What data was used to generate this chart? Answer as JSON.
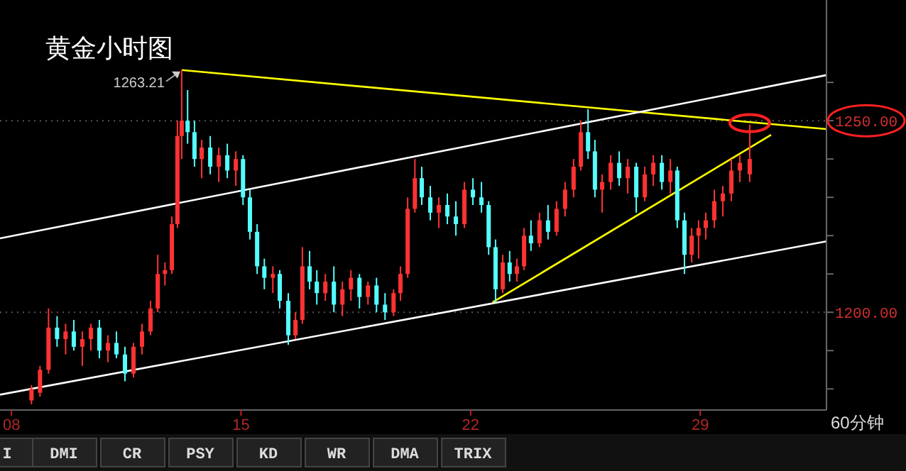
{
  "chart_data": {
    "type": "candlestick",
    "title": "黄金小时图",
    "x": [
      8.61,
      8.87,
      9.13,
      9.39,
      9.65,
      9.9,
      10.16,
      10.42,
      10.68,
      10.94,
      11.2,
      11.46,
      11.72,
      11.98,
      12.24,
      12.46,
      12.68,
      12.89,
      13.06,
      13.19,
      13.37,
      13.58,
      13.8,
      14.06,
      14.32,
      14.58,
      14.84,
      15.06,
      15.27,
      15.49,
      15.71,
      15.97,
      16.18,
      16.44,
      16.66,
      16.87,
      17.09,
      17.31,
      17.57,
      17.83,
      18.09,
      18.35,
      18.61,
      18.87,
      19.13,
      19.39,
      19.65,
      19.86,
      20.08,
      20.3,
      20.51,
      20.77,
      21.03,
      21.29,
      21.55,
      21.81,
      22.07,
      22.33,
      22.55,
      22.76,
      22.98,
      23.19,
      23.41,
      23.63,
      23.84,
      24.1,
      24.36,
      24.62,
      24.88,
      25.14,
      25.36,
      25.58,
      25.79,
      26.01,
      26.27,
      26.53,
      26.79,
      27.05,
      27.31,
      27.57,
      27.83,
      28.09,
      28.3,
      28.52,
      28.74,
      28.95,
      29.17,
      29.43,
      29.69,
      29.95,
      30.21,
      30.51
    ],
    "ohlc": [
      [
        1177,
        1181,
        1176,
        1180
      ],
      [
        1179,
        1186,
        1178,
        1185
      ],
      [
        1185,
        1201,
        1184,
        1196
      ],
      [
        1196,
        1199,
        1191,
        1193
      ],
      [
        1193,
        1197,
        1189,
        1195
      ],
      [
        1195,
        1198,
        1190,
        1191
      ],
      [
        1191,
        1195,
        1186,
        1193
      ],
      [
        1193,
        1197,
        1190,
        1196
      ],
      [
        1196,
        1198,
        1188,
        1190
      ],
      [
        1190,
        1194,
        1187,
        1192
      ],
      [
        1192,
        1195,
        1188,
        1189
      ],
      [
        1189,
        1191,
        1182,
        1184
      ],
      [
        1184,
        1192,
        1183,
        1191
      ],
      [
        1191,
        1197,
        1189,
        1195
      ],
      [
        1195,
        1203,
        1194,
        1201
      ],
      [
        1201,
        1215,
        1200,
        1210
      ],
      [
        1210,
        1213,
        1207,
        1211
      ],
      [
        1211,
        1225,
        1210,
        1223
      ],
      [
        1223,
        1250,
        1222,
        1246
      ],
      [
        1246,
        1263.21,
        1240,
        1250
      ],
      [
        1250,
        1258,
        1244,
        1247
      ],
      [
        1247,
        1250,
        1238,
        1240
      ],
      [
        1240,
        1245,
        1235,
        1243
      ],
      [
        1243,
        1246,
        1236,
        1238
      ],
      [
        1238,
        1243,
        1234,
        1241
      ],
      [
        1241,
        1244,
        1235,
        1237
      ],
      [
        1237,
        1242,
        1233,
        1240
      ],
      [
        1240,
        1241,
        1228,
        1230
      ],
      [
        1230,
        1232,
        1219,
        1221
      ],
      [
        1221,
        1223,
        1210,
        1212
      ],
      [
        1212,
        1214,
        1206,
        1209
      ],
      [
        1209,
        1212,
        1205,
        1210
      ],
      [
        1210,
        1211,
        1201,
        1203
      ],
      [
        1203,
        1205,
        1191.5,
        1194
      ],
      [
        1194,
        1200,
        1193,
        1198
      ],
      [
        1198,
        1217,
        1197,
        1212
      ],
      [
        1212,
        1216,
        1206,
        1208
      ],
      [
        1208,
        1211,
        1202,
        1205
      ],
      [
        1205,
        1210,
        1203,
        1208
      ],
      [
        1208,
        1212,
        1200,
        1202
      ],
      [
        1202,
        1208,
        1199,
        1206
      ],
      [
        1206,
        1211,
        1203,
        1209
      ],
      [
        1209,
        1210,
        1201,
        1204
      ],
      [
        1204,
        1208,
        1202,
        1207
      ],
      [
        1207,
        1209,
        1200,
        1202
      ],
      [
        1202,
        1205,
        1198,
        1200
      ],
      [
        1200,
        1206,
        1199,
        1205
      ],
      [
        1205,
        1212,
        1203,
        1210
      ],
      [
        1210,
        1230,
        1209,
        1227
      ],
      [
        1227,
        1240,
        1226,
        1235
      ],
      [
        1235,
        1238,
        1228,
        1230
      ],
      [
        1230,
        1233,
        1224,
        1226
      ],
      [
        1226,
        1230,
        1222,
        1228
      ],
      [
        1228,
        1231,
        1223,
        1225
      ],
      [
        1225,
        1229,
        1220,
        1223
      ],
      [
        1223,
        1234,
        1222,
        1232
      ],
      [
        1232,
        1235,
        1228,
        1230
      ],
      [
        1230,
        1234,
        1226,
        1228
      ],
      [
        1228,
        1229,
        1215,
        1217
      ],
      [
        1217,
        1219,
        1202.6,
        1206
      ],
      [
        1206,
        1215,
        1205,
        1213
      ],
      [
        1213,
        1216,
        1208,
        1210
      ],
      [
        1210,
        1214,
        1208,
        1212
      ],
      [
        1212,
        1222,
        1211,
        1220
      ],
      [
        1220,
        1224,
        1216,
        1218
      ],
      [
        1218,
        1226,
        1217,
        1224
      ],
      [
        1224,
        1228,
        1219,
        1221
      ],
      [
        1221,
        1229,
        1220,
        1227
      ],
      [
        1227,
        1234,
        1225,
        1232
      ],
      [
        1232,
        1240,
        1230,
        1238
      ],
      [
        1238,
        1250,
        1237,
        1247
      ],
      [
        1247,
        1253,
        1240,
        1242
      ],
      [
        1242,
        1245,
        1230,
        1232
      ],
      [
        1232,
        1236,
        1226,
        1234
      ],
      [
        1234,
        1241,
        1232,
        1239
      ],
      [
        1239,
        1242,
        1233,
        1235
      ],
      [
        1235,
        1240,
        1231,
        1238
      ],
      [
        1238,
        1239,
        1226,
        1230
      ],
      [
        1230,
        1238,
        1229,
        1236
      ],
      [
        1236,
        1241,
        1233,
        1239
      ],
      [
        1239,
        1241,
        1232,
        1234
      ],
      [
        1234,
        1240,
        1231,
        1237
      ],
      [
        1237,
        1238,
        1222,
        1224
      ],
      [
        1224,
        1226,
        1210,
        1215
      ],
      [
        1215,
        1222,
        1213,
        1220
      ],
      [
        1220,
        1224,
        1214,
        1222
      ],
      [
        1222,
        1226,
        1219,
        1224
      ],
      [
        1224,
        1232,
        1222,
        1229
      ],
      [
        1229,
        1233,
        1225,
        1231
      ],
      [
        1231,
        1240,
        1229,
        1237
      ],
      [
        1237,
        1241,
        1234,
        1239
      ],
      [
        1236,
        1249,
        1234,
        1240
      ]
    ],
    "series": [
      {
        "type": "line",
        "color": "#ffff00",
        "x": [
          13.19,
          32.85
        ],
        "values": [
          1263.21,
          1247.8
        ]
      },
      {
        "type": "line",
        "color": "#ffffff",
        "x": [
          7.65,
          32.85
        ],
        "values": [
          1219.3,
          1261.9
        ]
      },
      {
        "type": "line",
        "color": "#ffffff",
        "x": [
          7.65,
          32.85
        ],
        "values": [
          1178.5,
          1218.5
        ]
      },
      {
        "type": "line",
        "color": "#ffff00",
        "x": [
          22.67,
          31.16
        ],
        "values": [
          1202.6,
          1246.3
        ]
      }
    ],
    "xlim": [
      7.65,
      32.85
    ],
    "ylim": [
      1174.5,
      1281.5
    ],
    "xticks": [
      {
        "value": 8,
        "label": "08"
      },
      {
        "value": 15,
        "label": "15"
      },
      {
        "value": 22,
        "label": "22"
      },
      {
        "value": 29,
        "label": "29"
      }
    ],
    "yticks": [
      {
        "value": 1180,
        "label": null
      },
      {
        "value": 1190,
        "label": null
      },
      {
        "value": 1200,
        "label": "1200.00"
      },
      {
        "value": 1210,
        "label": null
      },
      {
        "value": 1220,
        "label": null
      },
      {
        "value": 1230,
        "label": null
      },
      {
        "value": 1240,
        "label": null
      },
      {
        "value": 1250,
        "label": "1250.00"
      },
      {
        "value": 1260,
        "label": null
      }
    ],
    "grid": "y",
    "annotations": [
      {
        "text": "1263.21",
        "x": 13.19,
        "y": 1263.21
      },
      "60分钟",
      "I",
      "DMI",
      "CR",
      "PSY",
      "KD",
      "WR",
      "DMA",
      "TRIX"
    ]
  }
}
